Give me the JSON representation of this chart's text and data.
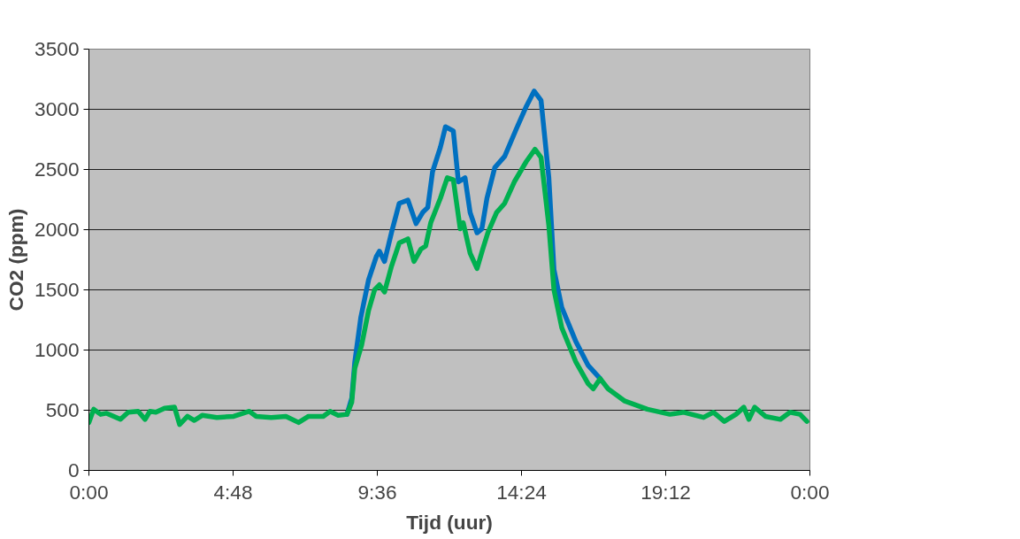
{
  "chart_data": {
    "type": "line",
    "xlabel": "Tijd (uur)",
    "ylabel": "CO2 (ppm)",
    "xlim": [
      0,
      24
    ],
    "ylim": [
      0,
      3500
    ],
    "xticks": [
      {
        "value": 0,
        "label": "0:00"
      },
      {
        "value": 4.8,
        "label": "4:48"
      },
      {
        "value": 9.6,
        "label": "9:36"
      },
      {
        "value": 14.4,
        "label": "14:24"
      },
      {
        "value": 19.2,
        "label": "19:12"
      },
      {
        "value": 24,
        "label": "0:00"
      }
    ],
    "yticks": [
      0,
      500,
      1000,
      1500,
      2000,
      2500,
      3000,
      3500
    ],
    "grid": "y",
    "marker": "none",
    "line_style": "solid",
    "series": [
      {
        "color": "#0070c0",
        "x": [
          8.59,
          8.75,
          8.85,
          9.05,
          9.31,
          9.57,
          9.67,
          9.84,
          10.07,
          10.33,
          10.62,
          10.89,
          11.11,
          11.28,
          11.44,
          11.7,
          11.87,
          12.13,
          12.3,
          12.52,
          12.69,
          12.92,
          13.08,
          13.25,
          13.51,
          13.84,
          14.23,
          14.56,
          14.82,
          15.05,
          15.31,
          15.48,
          15.74,
          16.2,
          16.62,
          17.02
        ],
        "values": [
          466,
          600,
          900,
          1270,
          1584,
          1779,
          1821,
          1736,
          1974,
          2219,
          2245,
          2050,
          2143,
          2185,
          2482,
          2685,
          2855,
          2821,
          2397,
          2431,
          2143,
          1974,
          2007,
          2261,
          2516,
          2609,
          2838,
          3024,
          3151,
          3075,
          2431,
          1669,
          1355,
          1076,
          872,
          762
        ]
      },
      {
        "color": "#00b050",
        "x": [
          0,
          0.16,
          0.39,
          0.59,
          1.05,
          1.31,
          1.64,
          1.87,
          2.03,
          2.23,
          2.52,
          2.85,
          3.02,
          3.28,
          3.51,
          3.77,
          4.26,
          4.82,
          5.34,
          5.57,
          6.07,
          6.56,
          6.98,
          7.31,
          7.8,
          8.03,
          8.3,
          8.59,
          8.75,
          8.85,
          9.08,
          9.31,
          9.51,
          9.67,
          9.84,
          10.07,
          10.33,
          10.62,
          10.82,
          11.05,
          11.21,
          11.38,
          11.7,
          11.93,
          12.13,
          12.36,
          12.46,
          12.69,
          12.92,
          13.11,
          13.28,
          13.57,
          13.84,
          14.16,
          14.56,
          14.85,
          15.05,
          15.31,
          15.48,
          15.74,
          16.2,
          16.62,
          16.79,
          17.02,
          17.28,
          17.84,
          18.59,
          19.34,
          19.8,
          20.46,
          20.79,
          21.15,
          21.54,
          21.8,
          21.97,
          22.16,
          22.52,
          23.02,
          23.34,
          23.67,
          23.9
        ],
        "values": [
          398,
          508,
          466,
          475,
          424,
          483,
          491,
          424,
          491,
          483,
          517,
          525,
          381,
          449,
          415,
          457,
          440,
          449,
          491,
          449,
          440,
          449,
          398,
          449,
          449,
          491,
          457,
          466,
          567,
          847,
          1042,
          1330,
          1500,
          1542,
          1482,
          1694,
          1889,
          1923,
          1736,
          1838,
          1864,
          2058,
          2261,
          2431,
          2414,
          2007,
          2058,
          1804,
          1677,
          1838,
          1974,
          2143,
          2219,
          2397,
          2566,
          2668,
          2600,
          2033,
          1500,
          1186,
          906,
          720,
          678,
          762,
          678,
          576,
          508,
          466,
          483,
          440,
          483,
          407,
          466,
          525,
          424,
          525,
          449,
          424,
          483,
          466,
          407
        ]
      }
    ]
  }
}
